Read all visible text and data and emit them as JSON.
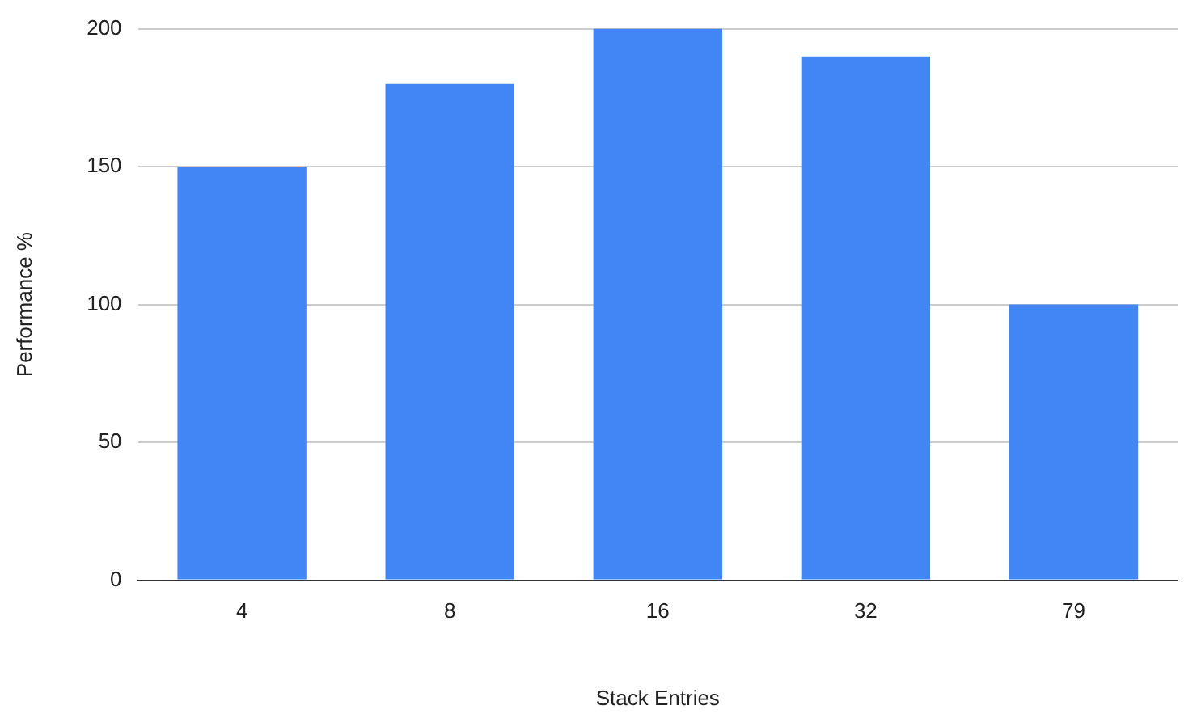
{
  "chart_data": {
    "type": "bar",
    "xlabel": "Stack Entries",
    "ylabel": "Performance %",
    "categories": [
      "4",
      "8",
      "16",
      "32",
      "79"
    ],
    "values": [
      150,
      180,
      200,
      190,
      100
    ],
    "color": "#4285f4",
    "ylim": [
      0,
      200
    ],
    "yticks": [
      0,
      50,
      100,
      150,
      200
    ],
    "grid": "y",
    "legend": false
  }
}
